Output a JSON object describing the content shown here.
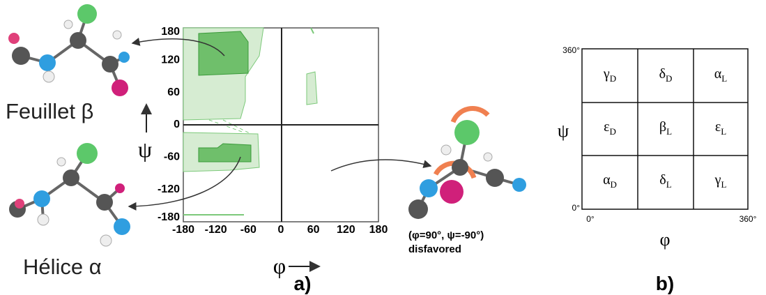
{
  "panel_a": {
    "y_ticks": [
      180,
      120,
      60,
      0,
      -60,
      -120,
      -180
    ],
    "x_ticks": [
      -180,
      -120,
      -60,
      0,
      60,
      120,
      180
    ],
    "y_axis_label": "ψ",
    "x_axis_label": "φ",
    "label": "a)",
    "beta_sheet_label": "Feuillet β",
    "alpha_helix_label": "Hélice α",
    "annotation": {
      "angles": "(φ=90°, ψ=-90°)",
      "note": "disfavored"
    }
  },
  "panel_b": {
    "y_axis_label": "ψ",
    "x_axis_label": "φ",
    "y_max_label": "360°",
    "y_min_label": "0°",
    "x_min_label": "0°",
    "x_max_label": "360°",
    "label": "b)",
    "cells": [
      [
        {
          "symbol": "γ",
          "sub": "D"
        },
        {
          "symbol": "δ",
          "sub": "D"
        },
        {
          "symbol": "α",
          "sub": "L"
        }
      ],
      [
        {
          "symbol": "ε",
          "sub": "D"
        },
        {
          "symbol": "β",
          "sub": "L"
        },
        {
          "symbol": "ε",
          "sub": "L"
        }
      ],
      [
        {
          "symbol": "α",
          "sub": "D"
        },
        {
          "symbol": "δ",
          "sub": "L"
        },
        {
          "symbol": "γ",
          "sub": "L"
        }
      ]
    ]
  }
}
